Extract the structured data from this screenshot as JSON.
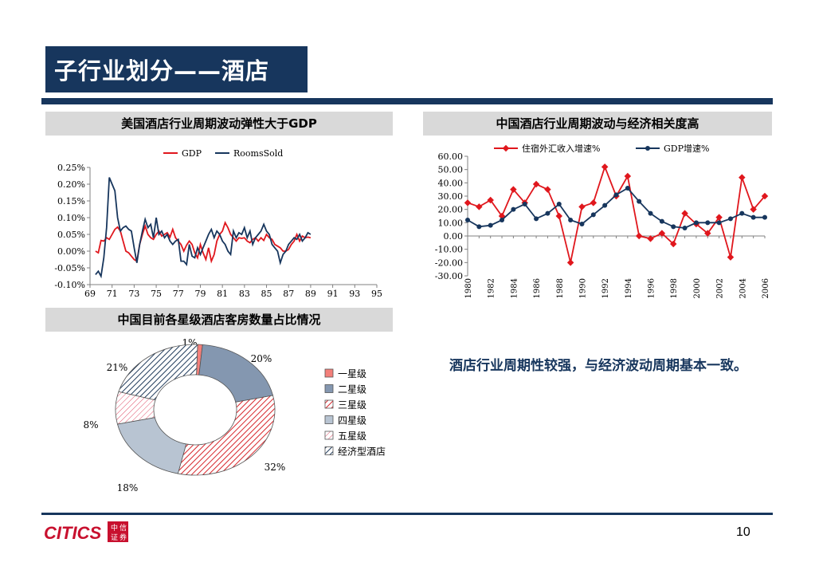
{
  "page": {
    "title": "子行业划分——酒店",
    "page_number": "10",
    "summary": "酒店行业周期性较强，与经济波动周期基本一致。",
    "logo_text": "CITICS",
    "logo_cn": [
      "中",
      "信",
      "证",
      "券"
    ],
    "primary_color": "#17365d"
  },
  "chart_data": [
    {
      "id": "us-hotel",
      "section_title": "美国酒店行业周期波动弹性大于GDP",
      "type": "line",
      "legend_position": "top",
      "ylim": [
        -0.1,
        0.25
      ],
      "yticks": [
        "0.25%",
        "0.20%",
        "0.15%",
        "0.10%",
        "0.05%",
        "0.00%",
        "-0.05%",
        "-0.10%"
      ],
      "xticks": [
        "69",
        "71",
        "73",
        "75",
        "77",
        "79",
        "81",
        "83",
        "85",
        "87",
        "89",
        "91",
        "93",
        "95"
      ],
      "x_start": 1969.5,
      "x_step": 0.25,
      "series": [
        {
          "name": "GDP",
          "color": "#e0171d",
          "values": [
            0.0,
            -0.005,
            0.032,
            0.03,
            0.04,
            0.035,
            0.05,
            0.065,
            0.072,
            0.06,
            0.03,
            0.0,
            -0.005,
            -0.015,
            -0.025,
            -0.03,
            0.02,
            0.05,
            0.075,
            0.05,
            0.04,
            0.035,
            0.05,
            0.06,
            0.045,
            0.05,
            0.055,
            0.042,
            0.065,
            0.04,
            0.03,
            0.02,
            0.0,
            0.018,
            0.03,
            0.02,
            -0.005,
            -0.02,
            0.02,
            -0.005,
            -0.025,
            0.01,
            -0.03,
            -0.01,
            0.03,
            0.05,
            0.06,
            0.085,
            0.07,
            0.05,
            0.04,
            0.03,
            0.04,
            0.038,
            0.04,
            0.03,
            0.025,
            0.035,
            0.04,
            0.03,
            0.04,
            0.032,
            0.05,
            0.04,
            0.035,
            0.02,
            0.015,
            0.01,
            0.0,
            0.0,
            0.005,
            0.02,
            0.03,
            0.05,
            0.03,
            0.045,
            0.04,
            0.042,
            0.04
          ]
        },
        {
          "name": "RoomsSold",
          "color": "#17365d",
          "values": [
            -0.07,
            -0.06,
            -0.075,
            -0.02,
            0.07,
            0.22,
            0.2,
            0.18,
            0.1,
            0.06,
            0.07,
            0.075,
            0.065,
            0.06,
            0.01,
            -0.035,
            0.02,
            0.06,
            0.095,
            0.07,
            0.08,
            0.04,
            0.1,
            0.05,
            0.06,
            0.04,
            0.05,
            0.03,
            0.02,
            0.03,
            0.035,
            -0.03,
            -0.03,
            -0.04,
            0.02,
            -0.015,
            -0.02,
            0.01,
            -0.01,
            0.01,
            0.03,
            0.05,
            0.065,
            0.04,
            0.06,
            0.05,
            0.03,
            0.02,
            0.0,
            -0.01,
            0.06,
            0.04,
            0.055,
            0.05,
            0.07,
            0.04,
            0.06,
            0.02,
            0.04,
            0.05,
            0.06,
            0.08,
            0.06,
            0.05,
            0.02,
            0.01,
            0.0,
            -0.035,
            -0.01,
            0.0,
            0.02,
            0.03,
            0.04,
            0.035,
            0.05,
            0.03,
            0.04,
            0.055,
            0.05
          ]
        }
      ]
    },
    {
      "id": "cn-hotel",
      "section_title": "中国酒店行业周期波动与经济相关度高",
      "type": "line",
      "legend_position": "top",
      "ylim": [
        -30,
        60
      ],
      "yticks": [
        "60.00",
        "50.00",
        "40.00",
        "30.00",
        "20.00",
        "10.00",
        "0.00",
        "-10.00",
        "-20.00",
        "-30.00"
      ],
      "x": [
        1980,
        1981,
        1982,
        1983,
        1984,
        1985,
        1986,
        1987,
        1988,
        1989,
        1990,
        1991,
        1992,
        1993,
        1994,
        1995,
        1996,
        1997,
        1998,
        1999,
        2000,
        2001,
        2002,
        2003,
        2004,
        2005,
        2006
      ],
      "xticks": [
        "1980",
        "1982",
        "1984",
        "1986",
        "1988",
        "1990",
        "1992",
        "1994",
        "1996",
        "1998",
        "2000",
        "2002",
        "2004",
        "2006"
      ],
      "series": [
        {
          "name": "住宿外汇收入增速%",
          "color": "#e0171d",
          "values": [
            25,
            22,
            27,
            15,
            35,
            25,
            39,
            35,
            15,
            -20,
            22,
            25,
            52,
            30,
            45,
            0,
            -2,
            2,
            -6,
            17,
            9,
            2,
            14,
            -16,
            44,
            20,
            30
          ]
        },
        {
          "name": "GDP增速%",
          "color": "#17365d",
          "values": [
            12,
            7,
            8,
            12,
            20,
            24,
            13,
            17,
            24,
            12,
            9,
            16,
            23,
            31,
            36,
            26,
            17,
            11,
            7,
            6,
            10,
            10,
            10,
            13,
            17,
            14,
            14
          ]
        }
      ]
    },
    {
      "id": "cn-star",
      "section_title": "中国目前各星级酒店客房数量占比情况",
      "type": "pie",
      "legend_position": "right",
      "slices": [
        {
          "name": "一星级",
          "label": "1%",
          "value": 1
        },
        {
          "name": "二星级",
          "label": "20%",
          "value": 20
        },
        {
          "name": "三星级",
          "label": "32%",
          "value": 32
        },
        {
          "name": "四星级",
          "label": "18%",
          "value": 18
        },
        {
          "name": "五星级",
          "label": "8%",
          "value": 8
        },
        {
          "name": "经济型酒店",
          "label": "21%",
          "value": 21
        }
      ]
    }
  ]
}
